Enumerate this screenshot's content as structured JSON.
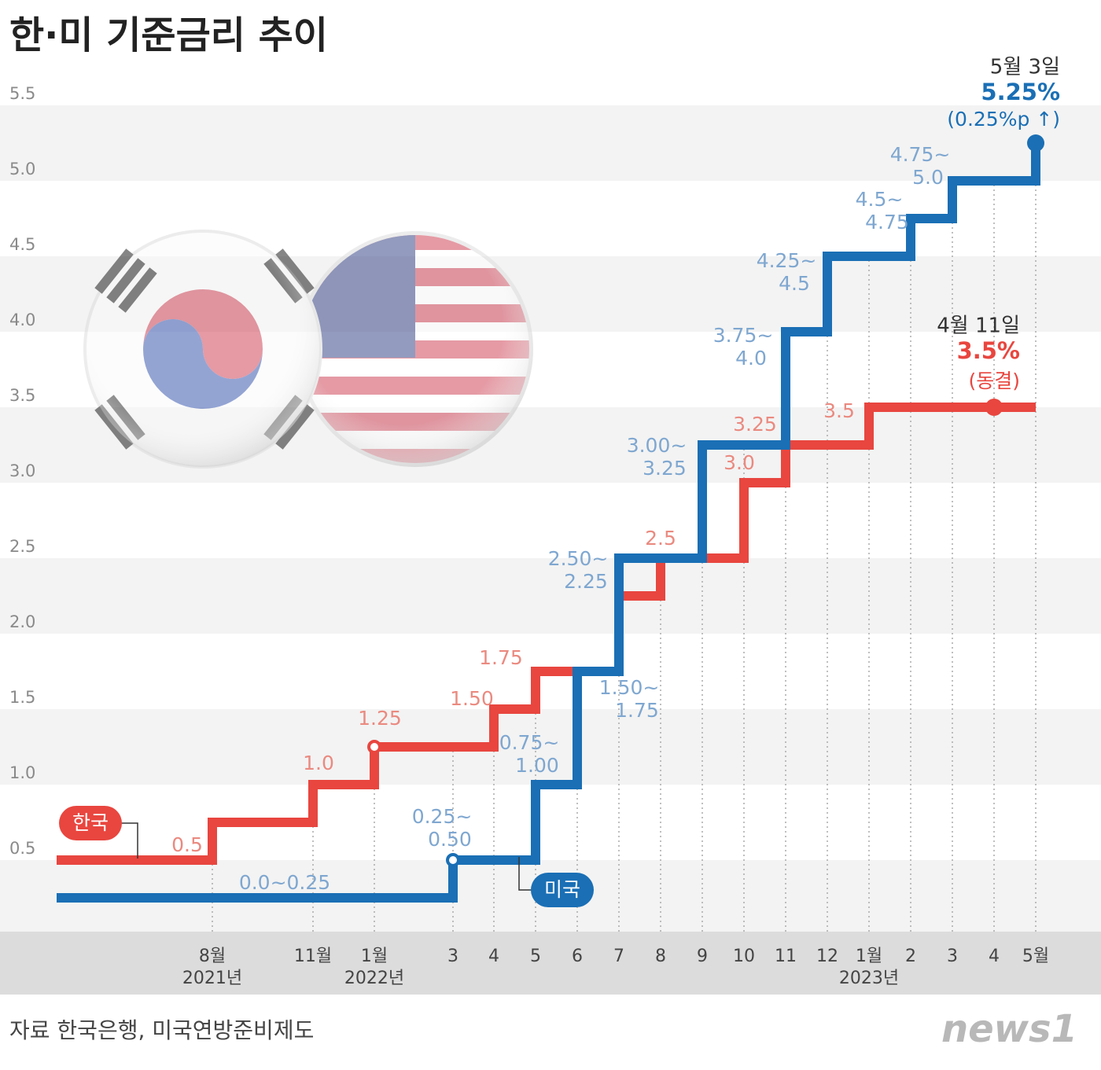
{
  "chart_data": {
    "type": "step-line",
    "title": "한·미 기준금리 추이",
    "source": "자료 한국은행, 미국연방준비제도",
    "logo": "news1",
    "categories": [
      null,
      "8월",
      "11월",
      "1월",
      "3",
      "4",
      "5",
      "6",
      "7",
      "8",
      "9",
      "10",
      "11",
      "12",
      "1월",
      "2",
      "3",
      "4",
      "5월"
    ],
    "year_labels": [
      null,
      "2021년",
      null,
      "2022년",
      null,
      null,
      null,
      null,
      null,
      null,
      null,
      null,
      null,
      null,
      "2023년",
      null,
      null,
      null,
      null
    ],
    "ylim": [
      0,
      5.5
    ],
    "yticks": [
      0.5,
      {
        "value": 1,
        "label": "1.0"
      },
      1.5,
      {
        "value": 2,
        "label": "2.0"
      },
      2.5,
      {
        "value": 3,
        "label": "3.0"
      },
      3.5,
      {
        "value": 4,
        "label": "4.0"
      },
      4.5,
      {
        "value": 5,
        "label": "5.0"
      },
      5.5
    ],
    "grid": "bands",
    "series": [
      {
        "name": "한국",
        "color": "#e8463f",
        "label_color": "#ea8a80",
        "values": [
          0.5,
          0.75,
          1.0,
          1.25,
          1.25,
          1.5,
          1.75,
          1.75,
          2.25,
          2.5,
          2.5,
          3.0,
          3.25,
          3.25,
          3.5,
          3.5,
          3.5,
          3.5,
          3.5
        ],
        "value_labels": [
          "0.5",
          null,
          "1.0",
          "1.25",
          null,
          "1.50",
          "1.75",
          null,
          null,
          "2.5",
          null,
          "3.0",
          "3.25",
          null,
          "3.5",
          null,
          null,
          "3.5%",
          null
        ],
        "hollow_points": [
          3
        ],
        "filled_points": [
          17
        ],
        "callout": {
          "date": "4월 11일",
          "note": "(동결)"
        }
      },
      {
        "name": "미국",
        "color": "#1a6fb5",
        "label_color": "#7fa7d0",
        "values": [
          0.25,
          0.25,
          0.25,
          0.25,
          0.5,
          0.5,
          1.0,
          1.75,
          2.5,
          2.5,
          3.25,
          3.25,
          4.0,
          4.5,
          4.5,
          4.75,
          5.0,
          5.0,
          5.25
        ],
        "value_labels": [
          [
            "0.0~0.25"
          ],
          null,
          null,
          null,
          [
            "0.25~",
            "0.50"
          ],
          null,
          [
            "0.75~",
            "1.00"
          ],
          [
            "1.50~",
            "1.75"
          ],
          [
            "2.50~",
            "2.25"
          ],
          null,
          [
            "3.00~",
            "3.25"
          ],
          null,
          [
            "3.75~",
            "4.0"
          ],
          [
            "4.25~",
            "4.5"
          ],
          null,
          [
            "4.5~",
            "4.75"
          ],
          [
            "4.75~",
            "5.0"
          ],
          null,
          "5.25%"
        ],
        "hollow_points": [
          4
        ],
        "filled_points": [
          18
        ],
        "callout": {
          "date": "5월 3일",
          "note": "(0.25%p ↑)"
        }
      }
    ]
  }
}
